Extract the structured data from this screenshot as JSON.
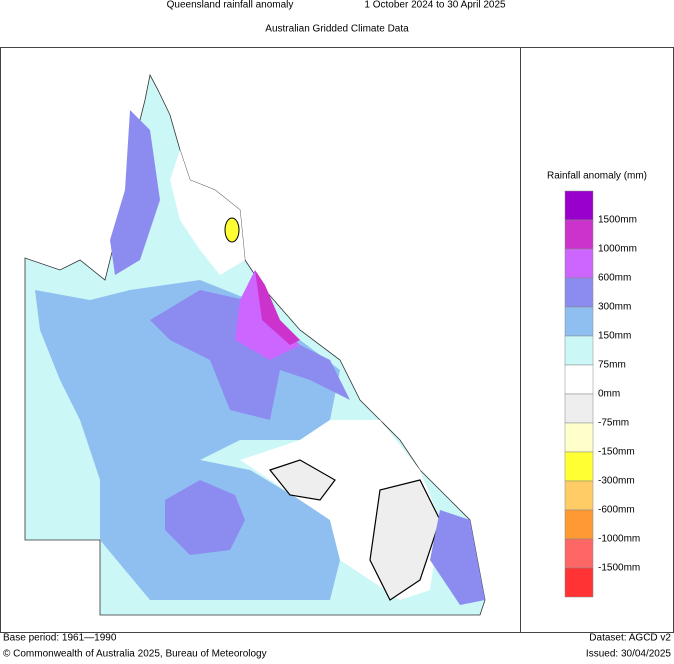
{
  "header": {
    "title": "Queensland rainfall anomaly",
    "period": "1 October 2024 to 30 April 2025",
    "subtitle": "Australian Gridded Climate Data"
  },
  "legend": {
    "title": "Rainfall anomaly (mm)",
    "colors": [
      "#9a00cc",
      "#cc33cc",
      "#cc66ff",
      "#8c8cf0",
      "#8fbff0",
      "#ccf7f7",
      "#ffffff",
      "#eeeeee",
      "#ffffcc",
      "#ffff33",
      "#ffcc66",
      "#ff9933",
      "#ff6666",
      "#ff3333"
    ],
    "labels": [
      "1500mm",
      "1000mm",
      "600mm",
      "300mm",
      "150mm",
      "75mm",
      "0mm",
      "-75mm",
      "-150mm",
      "-300mm",
      "-600mm",
      "-1000mm",
      "-1500mm"
    ]
  },
  "footer": {
    "base_period": "Base period: 1961—1990",
    "dataset": "Dataset: AGCD v2",
    "copyright": "© Commonwealth of Australia 2025, Bureau of Meteorology",
    "issued": "Issued: 30/04/2025"
  }
}
